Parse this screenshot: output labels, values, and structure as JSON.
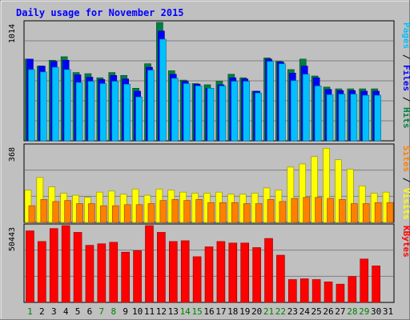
{
  "chart_data": {
    "type": "bar",
    "title": "Daily usage for November 2015",
    "categories": [
      "1",
      "2",
      "3",
      "4",
      "5",
      "6",
      "7",
      "8",
      "9",
      "10",
      "11",
      "12",
      "13",
      "14",
      "15",
      "16",
      "17",
      "18",
      "19",
      "20",
      "21",
      "22",
      "23",
      "24",
      "25",
      "26",
      "27",
      "28",
      "29",
      "30",
      "31"
    ],
    "weekend_days": [
      "1",
      "7",
      "8",
      "14",
      "15",
      "21",
      "22",
      "28",
      "29"
    ],
    "panels": [
      {
        "id": "hits",
        "ymax_label": "1014",
        "ymax": 1014,
        "legend": [
          {
            "label": "Pages",
            "color": "#00c0ff"
          },
          {
            "label": "Files",
            "color": "#0000ff"
          },
          {
            "label": "Hits",
            "color": "#008040"
          }
        ],
        "series": [
          {
            "name": "Hits",
            "color": "#008040",
            "values": [
              700,
              640,
              690,
              720,
              585,
              575,
              540,
              585,
              560,
              450,
              660,
              1014,
              600,
              520,
              490,
              480,
              510,
              570,
              540,
              425,
              710,
              680,
              610,
              700,
              555,
              460,
              445,
              445,
              445,
              445,
              null
            ]
          },
          {
            "name": "Files",
            "color": "#0000ff",
            "values": [
              700,
              640,
              680,
              690,
              565,
              545,
              525,
              560,
              530,
              425,
              630,
              940,
              570,
              510,
              485,
              450,
              480,
              540,
              530,
              425,
              700,
              675,
              580,
              640,
              540,
              440,
              430,
              430,
              425,
              425,
              null
            ]
          },
          {
            "name": "Pages",
            "color": "#00c0ff",
            "values": [
              610,
              590,
              630,
              610,
              500,
              510,
              490,
              510,
              485,
              375,
              605,
              870,
              535,
              490,
              470,
              450,
              470,
              510,
              510,
              410,
              680,
              660,
              515,
              570,
              470,
              395,
              400,
              400,
              390,
              390,
              null
            ]
          }
        ]
      },
      {
        "id": "visits",
        "ymax_label": "368",
        "ymax": 368,
        "legend": [
          {
            "label": "Sites",
            "color": "#ff8000"
          },
          {
            "label": "Visits",
            "color": "#ffff00"
          }
        ],
        "series": [
          {
            "name": "Visits",
            "color": "#ffff00",
            "values": [
              155,
              215,
              170,
              140,
              130,
              120,
              145,
              150,
              135,
              160,
              130,
              160,
              155,
              145,
              140,
              140,
              145,
              135,
              135,
              140,
              165,
              155,
              265,
              280,
              315,
              355,
              300,
              255,
              175,
              140,
              145
            ]
          },
          {
            "name": "Sites",
            "color": "#ff8000",
            "values": [
              80,
              110,
              100,
              105,
              90,
              90,
              80,
              80,
              85,
              85,
              90,
              105,
              110,
              105,
              110,
              95,
              95,
              95,
              90,
              90,
              110,
              100,
              115,
              120,
              120,
              115,
              110,
              90,
              90,
              95,
              95
            ]
          }
        ]
      },
      {
        "id": "kbytes",
        "ymax_label": "50443",
        "ymax": 50443,
        "legend": [
          {
            "label": "KBytes",
            "color": "#ff0000"
          }
        ],
        "series": [
          {
            "name": "KBytes",
            "color": "#ff0000",
            "values": [
              47000,
              40000,
              48500,
              50443,
              46000,
              37500,
              38500,
              39500,
              33000,
              34000,
              50443,
              46000,
              40000,
              40500,
              30000,
              36500,
              40000,
              39000,
              39000,
              36000,
              42000,
              31000,
              15000,
              15500,
              15000,
              13500,
              12000,
              17000,
              28500,
              24000,
              null
            ]
          }
        ]
      }
    ]
  }
}
